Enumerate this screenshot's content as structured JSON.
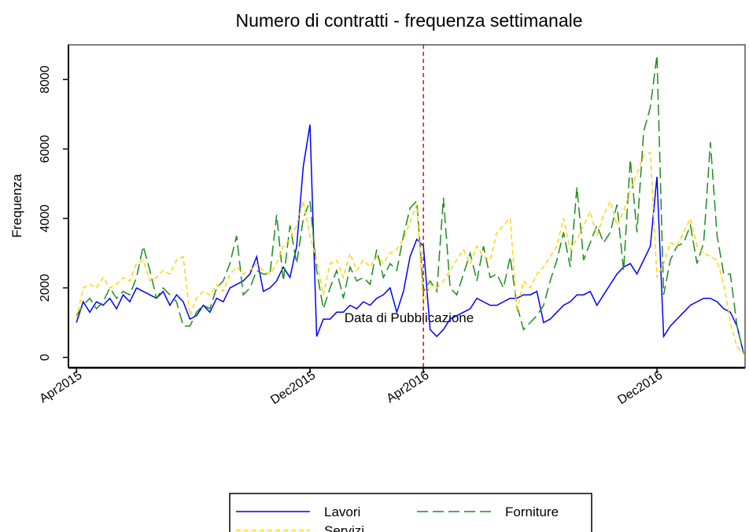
{
  "chart_data": {
    "type": "line",
    "title": "Numero di contratti - frequenza settimanale",
    "xlabel": "Data di Pubblicazione",
    "ylabel": "Frequenza",
    "x": [
      0,
      1,
      2,
      3,
      4,
      5,
      6,
      7,
      8,
      9,
      10,
      11,
      12,
      13,
      14,
      15,
      16,
      17,
      18,
      19,
      20,
      21,
      22,
      23,
      24,
      25,
      26,
      27,
      28,
      29,
      30,
      31,
      32,
      33,
      34,
      35,
      36,
      37,
      38,
      39,
      40,
      41,
      42,
      43,
      44,
      45,
      46,
      47,
      48,
      49,
      50,
      51,
      52,
      53,
      54,
      55,
      56,
      57,
      58,
      59,
      60,
      61,
      62,
      63,
      64,
      65,
      66,
      67,
      68,
      69,
      70,
      71,
      72,
      73,
      74,
      75,
      76,
      77,
      78,
      79,
      80,
      81,
      82,
      83,
      84,
      85,
      86,
      87,
      88,
      89,
      90,
      91,
      92,
      93,
      94,
      95,
      96,
      97,
      98,
      99,
      100
    ],
    "series": [
      {
        "name": "Lavori",
        "color": "#0000ff",
        "dash": "solid",
        "values": [
          1000,
          1600,
          1300,
          1600,
          1500,
          1700,
          1400,
          1800,
          1600,
          2000,
          1900,
          1800,
          1700,
          1900,
          1500,
          1800,
          1600,
          1100,
          1200,
          1500,
          1300,
          1700,
          1600,
          2000,
          2100,
          2200,
          2400,
          2900,
          1900,
          2000,
          2200,
          2600,
          2300,
          3200,
          5500,
          6700,
          600,
          1100,
          1100,
          1300,
          1300,
          1500,
          1400,
          1600,
          1500,
          1700,
          1800,
          2000,
          1300,
          1900,
          2900,
          3400,
          3200,
          800,
          600,
          800,
          1100,
          1200,
          1300,
          1400,
          1700,
          1600,
          1500,
          1500,
          1600,
          1700,
          1700,
          1800,
          1800,
          1900,
          1000,
          1100,
          1300,
          1500,
          1600,
          1800,
          1800,
          1900,
          1500,
          1800,
          2100,
          2400,
          2600,
          2700,
          2400,
          2800,
          3200,
          5200,
          600,
          900,
          1100,
          1300,
          1500,
          1600,
          1700,
          1700,
          1600,
          1400,
          1300,
          900,
          100
        ]
      },
      {
        "name": "Forniture",
        "color": "#1e8c1e",
        "dash": "long",
        "values": [
          1200,
          1500,
          1700,
          1400,
          1600,
          2000,
          1700,
          1900,
          1800,
          2300,
          3200,
          2500,
          1700,
          2000,
          1800,
          1600,
          900,
          900,
          1300,
          1500,
          1400,
          2000,
          2200,
          2700,
          3500,
          1800,
          2000,
          2500,
          2400,
          2400,
          4100,
          2200,
          3800,
          2700,
          4000,
          4500,
          2500,
          1400,
          2000,
          2500,
          1700,
          2600,
          2200,
          2300,
          2100,
          3100,
          2300,
          2700,
          2500,
          3500,
          4300,
          4500,
          1900,
          2200,
          1900,
          4600,
          2000,
          1800,
          2400,
          3000,
          2200,
          3200,
          2300,
          2400,
          2000,
          2900,
          1500,
          800,
          1000,
          1200,
          1500,
          2200,
          2800,
          3600,
          2600,
          4900,
          2800,
          3300,
          3800,
          3300,
          3600,
          4400,
          2500,
          5700,
          3600,
          6500,
          7200,
          8700,
          1800,
          2800,
          3200,
          3300,
          3800,
          2700,
          3300,
          6200,
          3500,
          2400,
          2400,
          900,
          100
        ]
      },
      {
        "name": "Servizi",
        "color": "#ffd20a",
        "dash": "short",
        "values": [
          1100,
          2000,
          2100,
          2000,
          2300,
          2000,
          2100,
          2300,
          2200,
          2700,
          2800,
          2200,
          2300,
          2500,
          2400,
          2800,
          2900,
          1200,
          1700,
          1900,
          1800,
          2100,
          1900,
          2400,
          2600,
          2400,
          2500,
          2700,
          2500,
          2400,
          2700,
          3200,
          3400,
          3800,
          4500,
          3500,
          2800,
          1800,
          2700,
          2800,
          2300,
          3000,
          2500,
          2800,
          2600,
          2900,
          2700,
          3000,
          3100,
          3400,
          3900,
          4400,
          1500,
          2100,
          2000,
          2200,
          2500,
          2800,
          3100,
          2700,
          3200,
          2900,
          2800,
          3600,
          3800,
          4000,
          1300,
          2200,
          2000,
          2400,
          2600,
          2900,
          3200,
          4000,
          3100,
          3400,
          3800,
          4200,
          3500,
          4100,
          4500,
          3800,
          4200,
          4800,
          5300,
          5800,
          5900,
          2300,
          2700,
          3300,
          3200,
          3600,
          4000,
          3200,
          3000,
          2900,
          2800,
          2100,
          1000,
          300,
          100
        ]
      }
    ],
    "xlim": [
      -1.2,
      100.2
    ],
    "xticks": [
      {
        "value": 0,
        "label": "Apr2015"
      },
      {
        "value": 35,
        "label": "Dec2015"
      },
      {
        "value": 52,
        "label": "Apr2016"
      },
      {
        "value": 87,
        "label": "Dec2016"
      }
    ],
    "ylim": [
      -300,
      9000
    ],
    "yticks": [
      0,
      2000,
      4000,
      6000,
      8000
    ],
    "vline": {
      "value": 52,
      "color": "#ff0000"
    },
    "legend": "bottom"
  }
}
